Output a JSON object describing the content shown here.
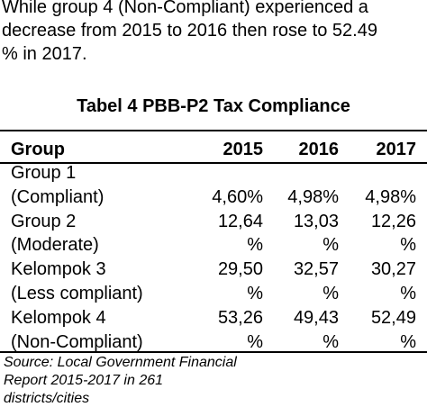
{
  "paragraph": [
    "While group 4 (Non-Compliant) experienced a",
    "decrease from 2015 to 2016 then rose to 52.49",
    "% in 2017."
  ],
  "table": {
    "title": "Tabel 4 PBB-P2 Tax Compliance",
    "header": [
      "Group",
      "2015",
      "2016",
      "2017"
    ],
    "rows": [
      [
        "Group 1",
        null,
        null,
        null
      ],
      [
        "(Compliant)",
        "4,60%",
        "4,98%",
        "4,98%"
      ],
      [
        "Group 2",
        "12,64",
        "13,03",
        "12,26"
      ],
      [
        "(Moderate)",
        "%",
        "%",
        "%"
      ],
      [
        "Kelompok 3",
        "29,50",
        "32,57",
        "30,27"
      ],
      [
        "(Less compliant)",
        "%",
        "%",
        "%"
      ],
      [
        "Kelompok 4",
        "53,26",
        "49,43",
        "52,49"
      ],
      [
        "(Non-Compliant)",
        "%",
        "%",
        "%"
      ]
    ],
    "source": [
      "Source: Local Government Financial",
      "Report 2015-2017 in 261",
      "districts/cities"
    ]
  }
}
